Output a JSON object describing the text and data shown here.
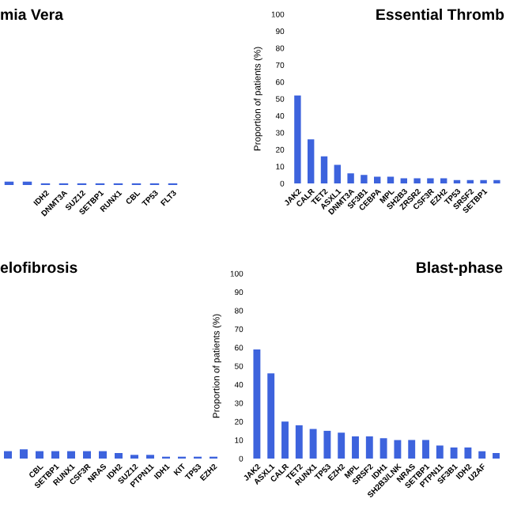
{
  "chart_data": [
    {
      "type": "bar",
      "title": "mia Vera",
      "categories": [
        null,
        null,
        "IDH2",
        "DNMT3A",
        "SUZ12",
        "SETBP1",
        "RUNX1",
        "CBL",
        "TP53",
        "FLT3"
      ],
      "values": [
        2,
        2,
        1,
        1,
        1,
        1,
        1,
        1,
        1,
        1
      ],
      "color": "#3d63dd",
      "ylim": [
        0,
        100
      ],
      "tick_labels": "x",
      "grid": false,
      "legend": false
    },
    {
      "type": "bar",
      "title": "Essential Thromb",
      "ylabel": "Proportion of patients (%)",
      "categories": [
        "JAK2",
        "CALR",
        "TET2",
        "ASXL1",
        "DNMT3A",
        "SF3B1",
        "CEBPA",
        "MPL",
        "SH2B3",
        "ZRSR2",
        "CSF3R",
        "EZH2",
        "TP53",
        "SRSF2",
        "SETBP1",
        null
      ],
      "values": [
        52,
        26,
        16,
        11,
        6,
        5,
        4,
        4,
        3,
        3,
        3,
        3,
        2,
        2,
        2,
        2
      ],
      "color": "#3d63dd",
      "ylim": [
        0,
        100
      ],
      "yticks": [
        0,
        10,
        20,
        30,
        40,
        50,
        60,
        70,
        80,
        90,
        100
      ],
      "grid": false,
      "legend": false
    },
    {
      "type": "bar",
      "title": "elofibrosis",
      "categories": [
        null,
        null,
        "CBL",
        "SETBP1",
        "RUNX1",
        "CSF3R",
        "NRAS",
        "IDH2",
        "SUZ12",
        "PTPN11",
        "IDH1",
        "KIT",
        "TP53",
        "EZH2"
      ],
      "values": [
        4,
        5,
        4,
        4,
        4,
        4,
        4,
        3,
        2,
        2,
        1,
        1,
        1,
        1
      ],
      "color": "#3d63dd",
      "ylim": [
        0,
        100
      ],
      "tick_labels": "x",
      "grid": false,
      "legend": false
    },
    {
      "type": "bar",
      "title": "Blast-phase",
      "ylabel": "Proportion of patients (%)",
      "categories": [
        "JAK2",
        "ASXL1",
        "CALR",
        "TET2",
        "RUNX1",
        "TP53",
        "EZH2",
        "MPL",
        "SRSF2",
        "IDH1",
        "SH2B3/LNK",
        "NRAS",
        "SETBP1",
        "PTPN11",
        "SF3B1",
        "IDH2",
        "U2AF",
        null
      ],
      "values": [
        59,
        46,
        20,
        18,
        16,
        15,
        14,
        12,
        12,
        11,
        10,
        10,
        10,
        7,
        6,
        6,
        4,
        3
      ],
      "color": "#3d63dd",
      "ylim": [
        0,
        100
      ],
      "yticks": [
        0,
        10,
        20,
        30,
        40,
        50,
        60,
        70,
        80,
        90,
        100
      ],
      "grid": false,
      "legend": false
    }
  ]
}
